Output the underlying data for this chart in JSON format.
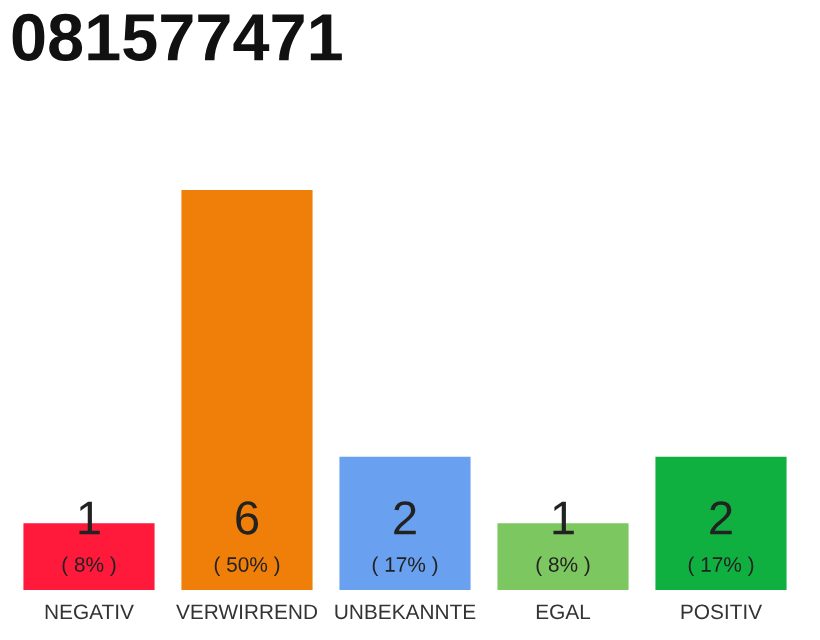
{
  "chart_data": {
    "type": "bar",
    "title": "081577471",
    "categories": [
      "NEGATIV",
      "VERWIRREND",
      "UNBEKANNTE",
      "EGAL",
      "POSITIV"
    ],
    "values": [
      1,
      6,
      2,
      1,
      2
    ],
    "colors": [
      "#ff1a3c",
      "#f07f0a",
      "#6aa0f0",
      "#7dc760",
      "#10b040"
    ],
    "data_labels": true,
    "annotations": [
      "( 8% )",
      "( 50% )",
      "( 17% )",
      "( 8% )",
      "( 17% )"
    ],
    "grid": false,
    "legend": false
  }
}
